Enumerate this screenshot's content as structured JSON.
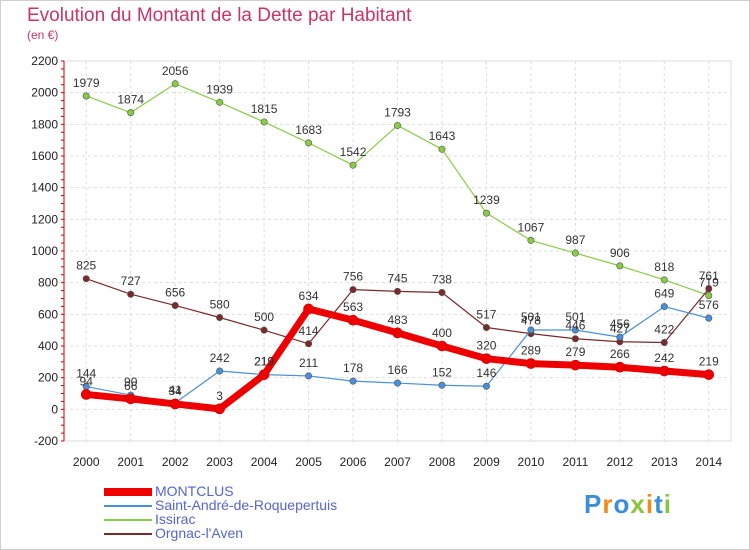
{
  "header": {
    "title": "Evolution du Montant de la Dette par Habitant",
    "subtitle": "(en €)"
  },
  "logo": {
    "text": "Proxiti"
  },
  "chart_data": {
    "type": "line",
    "title": "Evolution du Montant de la Dette par Habitant",
    "subtitle": "(en €)",
    "x": [
      "2000",
      "2001",
      "2002",
      "2003",
      "2004",
      "2005",
      "2006",
      "2007",
      "2008",
      "2009",
      "2010",
      "2011",
      "2012",
      "2013",
      "2014"
    ],
    "ylim": [
      -200,
      2200
    ],
    "yticks": [
      "-200",
      "0",
      "200",
      "400",
      "600",
      "800",
      "1000",
      "1200",
      "1400",
      "1600",
      "1800",
      "2000",
      "2200"
    ],
    "grid": true,
    "legend_position": "bottom-left",
    "series": [
      {
        "name": "MONTCLUS",
        "color": "#ee0000",
        "values": [
          94,
          66,
          34,
          3,
          219,
          634,
          563,
          483,
          400,
          320,
          289,
          279,
          266,
          242,
          219
        ]
      },
      {
        "name": "Saint-André-de-Roquepertuis",
        "color": "#4a90d9",
        "values": [
          144,
          90,
          41,
          242,
          219,
          211,
          178,
          166,
          152,
          146,
          501,
          501,
          456,
          649,
          576
        ]
      },
      {
        "name": "Issirac",
        "color": "#88cc44",
        "values": [
          1979,
          1874,
          2056,
          1939,
          1815,
          1683,
          1542,
          1793,
          1643,
          1239,
          1067,
          987,
          906,
          818,
          719
        ]
      },
      {
        "name": "Orgnac-l'Aven",
        "color": "#7a2a2a",
        "values": [
          825,
          727,
          656,
          580,
          500,
          414,
          756,
          745,
          738,
          517,
          478,
          446,
          427,
          422,
          761
        ]
      }
    ]
  }
}
